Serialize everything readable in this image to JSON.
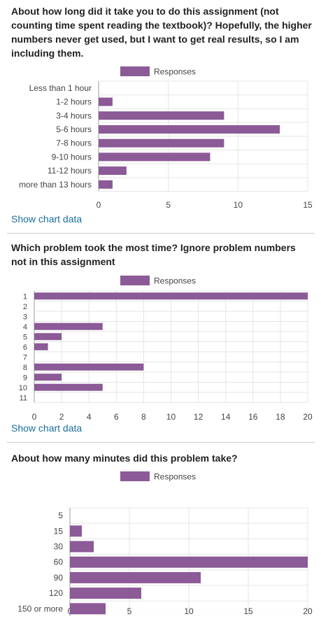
{
  "questions": [
    {
      "title": "About how long did it take you to do this assignment (not counting time spent reading the textbook)? Hopefully, the higher numbers never get used, but I want to get real results, so I am including them.",
      "show_data_label": "Show chart data"
    },
    {
      "title": "Which problem took the most time? Ignore problem numbers not in this assignment",
      "show_data_label": "Show chart data"
    },
    {
      "title": "About how many minutes did this problem take?"
    }
  ],
  "colors": {
    "bar": "#8b5a97",
    "grid": "#e5e5e5",
    "axis": "#999999"
  },
  "chart_data": [
    {
      "type": "bar",
      "orientation": "horizontal",
      "categories": [
        "Less than 1 hour",
        "1-2 hours",
        "3-4 hours",
        "5-6 hours",
        "7-8 hours",
        "9-10 hours",
        "11-12 hours",
        "more than 13 hours"
      ],
      "series": [
        {
          "name": "Responses",
          "values": [
            0,
            1,
            9,
            13,
            9,
            8,
            2,
            1
          ]
        }
      ],
      "xlim": [
        0,
        15
      ],
      "xticks": [
        0,
        5,
        10,
        15
      ],
      "xlabel": "",
      "ylabel": "",
      "grid": true,
      "legend": "top"
    },
    {
      "type": "bar",
      "orientation": "horizontal",
      "categories": [
        "1",
        "2",
        "3",
        "4",
        "5",
        "6",
        "7",
        "8",
        "9",
        "10",
        "11"
      ],
      "series": [
        {
          "name": "Responses",
          "values": [
            20,
            0,
            0,
            5,
            2,
            1,
            0,
            8,
            2,
            5,
            0
          ]
        }
      ],
      "xlim": [
        0,
        20
      ],
      "xticks": [
        0,
        2,
        4,
        6,
        8,
        10,
        12,
        14,
        16,
        18,
        20
      ],
      "xlabel": "",
      "ylabel": "",
      "grid": true,
      "legend": "top"
    },
    {
      "type": "bar",
      "orientation": "horizontal",
      "categories": [
        "5",
        "15",
        "30",
        "60",
        "90",
        "120",
        "150 or more"
      ],
      "series": [
        {
          "name": "Responses",
          "values": [
            0,
            1,
            2,
            20,
            11,
            6,
            3
          ]
        }
      ],
      "xlim": [
        0,
        20
      ],
      "xticks": [
        0,
        5,
        10,
        15,
        20
      ],
      "xlabel": "",
      "ylabel": "",
      "grid": true,
      "legend": "top"
    }
  ]
}
